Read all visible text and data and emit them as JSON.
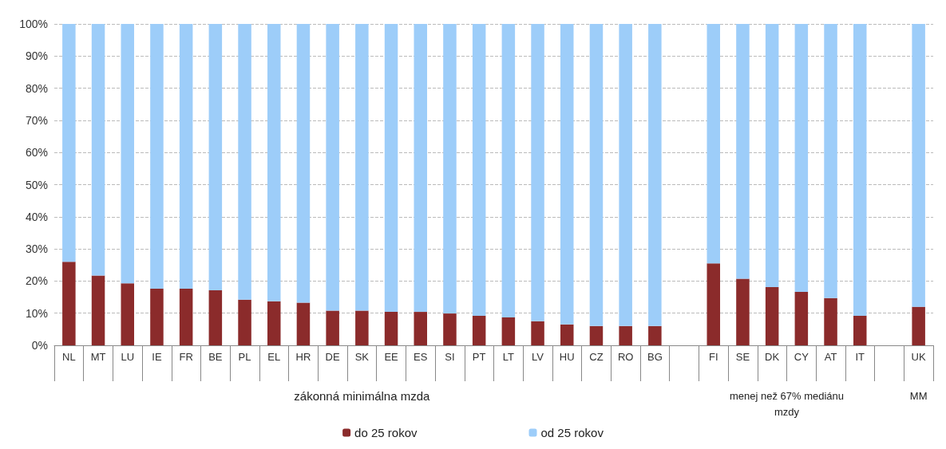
{
  "chart_data": {
    "type": "bar",
    "stacked": true,
    "categories": [
      "NL",
      "MT",
      "LU",
      "IE",
      "FR",
      "BE",
      "PL",
      "EL",
      "HR",
      "DE",
      "SK",
      "EE",
      "ES",
      "SI",
      "PT",
      "LT",
      "LV",
      "HU",
      "CZ",
      "RO",
      "BG",
      null,
      "FI",
      "SE",
      "DK",
      "CY",
      "AT",
      "IT",
      null,
      "UK"
    ],
    "series": [
      {
        "name": "do 25 rokov",
        "color": "#8b2b2b",
        "values": [
          26.0,
          21.7,
          19.3,
          17.6,
          17.6,
          17.1,
          14.2,
          13.7,
          13.3,
          10.8,
          10.8,
          10.4,
          10.4,
          9.9,
          9.2,
          8.7,
          7.5,
          6.5,
          6.0,
          6.0,
          6.0,
          null,
          25.5,
          20.7,
          18.1,
          16.6,
          14.7,
          9.2,
          null,
          12.0
        ]
      },
      {
        "name": "od 25 rokov",
        "color": "#9dcdf9",
        "values": [
          74.0,
          78.3,
          80.7,
          82.4,
          82.4,
          82.9,
          85.8,
          86.3,
          86.7,
          89.2,
          89.2,
          89.6,
          89.6,
          90.1,
          90.8,
          91.3,
          92.5,
          93.5,
          94.0,
          94.0,
          94.0,
          null,
          74.5,
          79.3,
          81.9,
          83.4,
          85.3,
          90.8,
          null,
          88.0
        ]
      }
    ],
    "ylim": [
      0,
      100
    ],
    "yticks": [
      {
        "value": 0,
        "label": "0%"
      },
      {
        "value": 10,
        "label": "10%"
      },
      {
        "value": 20,
        "label": "20%"
      },
      {
        "value": 30,
        "label": "30%"
      },
      {
        "value": 40,
        "label": "40%"
      },
      {
        "value": 50,
        "label": "50%"
      },
      {
        "value": 60,
        "label": "60%"
      },
      {
        "value": 70,
        "label": "70%"
      },
      {
        "value": 80,
        "label": "80%"
      },
      {
        "value": 90,
        "label": "90%"
      },
      {
        "value": 100,
        "label": "100%"
      }
    ],
    "grid": "y",
    "legend": "bottom",
    "annotations": [
      "zákonná minimálna mzda",
      "menej než 67% mediánu\nmzdy",
      "MM"
    ]
  }
}
